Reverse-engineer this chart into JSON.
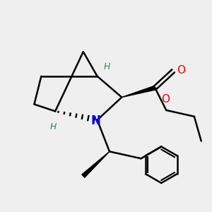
{
  "bg_color": "#efefef",
  "bond_color": "#000000",
  "N_color": "#0000ff",
  "O_color": "#ff0000",
  "H_color": "#2e8b57",
  "line_width": 1.8,
  "figsize": [
    3.0,
    3.0
  ],
  "dpi": 100,
  "xlim": [
    -2.5,
    3.5
  ],
  "ylim": [
    -2.8,
    2.8
  ]
}
